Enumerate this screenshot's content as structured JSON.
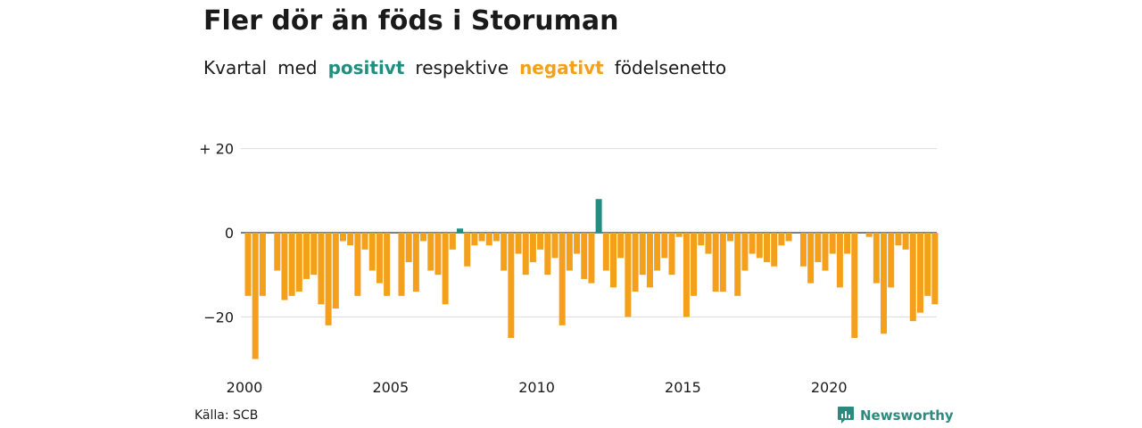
{
  "title": "Fler dör än föds i Storuman",
  "subtitle": {
    "w1": "Kvartal",
    "w2": "med",
    "positive": "positivt",
    "w3": "respektive",
    "negative": "negativt",
    "w4": "födelsenetto"
  },
  "source": "Källa: SCB",
  "brand": "Newsworthy",
  "colors": {
    "positive": "#1f9080",
    "negative": "#f5a01a",
    "grid": "#dddddd",
    "baseline": "#333333"
  },
  "chart_data": {
    "type": "bar",
    "title": "Fler dör än föds i Storuman",
    "xlabel": "",
    "ylabel": "",
    "x_start_year": 2000,
    "periods_per_year": 4,
    "ylim": [
      -30,
      20
    ],
    "y_ticks": [
      {
        "value": 20,
        "label": "+ 20"
      },
      {
        "value": 0,
        "label": "0"
      },
      {
        "value": -20,
        "label": "−20"
      }
    ],
    "x_ticks": [
      "2000",
      "2005",
      "2010",
      "2015",
      "2020"
    ],
    "grid": true,
    "values": [
      -15,
      -30,
      -15,
      0,
      -9,
      -16,
      -15,
      -14,
      -11,
      -10,
      -17,
      -22,
      -18,
      -2,
      -3,
      -15,
      -4,
      -9,
      -12,
      -15,
      0,
      -15,
      -7,
      -14,
      -2,
      -9,
      -10,
      -17,
      -4,
      1,
      -8,
      -3,
      -2,
      -3,
      -2,
      -9,
      -25,
      -5,
      -10,
      -7,
      -4,
      -10,
      -6,
      -22,
      -9,
      -5,
      -11,
      -12,
      8,
      -9,
      -13,
      -6,
      -20,
      -14,
      -10,
      -13,
      -9,
      -6,
      -10,
      -1,
      -20,
      -15,
      -3,
      -5,
      -14,
      -14,
      -2,
      -15,
      -9,
      -5,
      -6,
      -7,
      -8,
      -3,
      -2,
      0,
      -8,
      -12,
      -7,
      -9,
      -5,
      -13,
      -5,
      -25,
      0,
      -1,
      -12,
      -24,
      -13,
      -3,
      -4,
      -21,
      -19,
      -15,
      -17
    ]
  }
}
